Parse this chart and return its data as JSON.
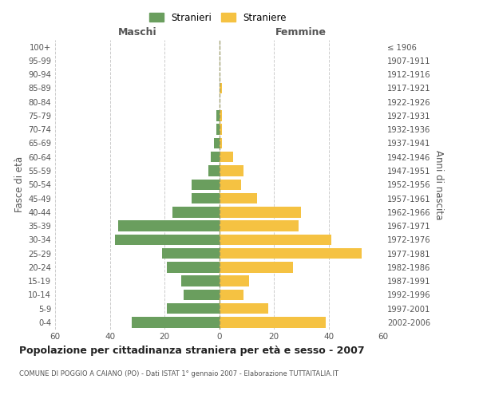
{
  "age_groups": [
    "0-4",
    "5-9",
    "10-14",
    "15-19",
    "20-24",
    "25-29",
    "30-34",
    "35-39",
    "40-44",
    "45-49",
    "50-54",
    "55-59",
    "60-64",
    "65-69",
    "70-74",
    "75-79",
    "80-84",
    "85-89",
    "90-94",
    "95-99",
    "100+"
  ],
  "birth_years": [
    "2002-2006",
    "1997-2001",
    "1992-1996",
    "1987-1991",
    "1982-1986",
    "1977-1981",
    "1972-1976",
    "1967-1971",
    "1962-1966",
    "1957-1961",
    "1952-1956",
    "1947-1951",
    "1942-1946",
    "1937-1941",
    "1932-1936",
    "1927-1931",
    "1922-1926",
    "1917-1921",
    "1912-1916",
    "1907-1911",
    "≤ 1906"
  ],
  "maschi": [
    32,
    19,
    13,
    14,
    19,
    21,
    38,
    37,
    17,
    10,
    10,
    4,
    3,
    2,
    1,
    1,
    0,
    0,
    0,
    0,
    0
  ],
  "femmine": [
    39,
    18,
    9,
    11,
    27,
    52,
    41,
    29,
    30,
    14,
    8,
    9,
    5,
    1,
    1,
    1,
    0,
    1,
    0,
    0,
    0
  ],
  "male_color": "#6a9e5e",
  "female_color": "#f5c242",
  "xlim": 60,
  "title": "Popolazione per cittadinanza straniera per età e sesso - 2007",
  "subtitle": "COMUNE DI POGGIO A CAIANO (PO) - Dati ISTAT 1° gennaio 2007 - Elaborazione TUTTAITALIA.IT",
  "ylabel_left": "Fasce di età",
  "ylabel_right": "Anni di nascita",
  "label_maschi": "Stranieri",
  "label_femmine": "Straniere",
  "header_maschi": "Maschi",
  "header_femmine": "Femmine",
  "background_color": "#ffffff",
  "grid_color": "#cccccc"
}
